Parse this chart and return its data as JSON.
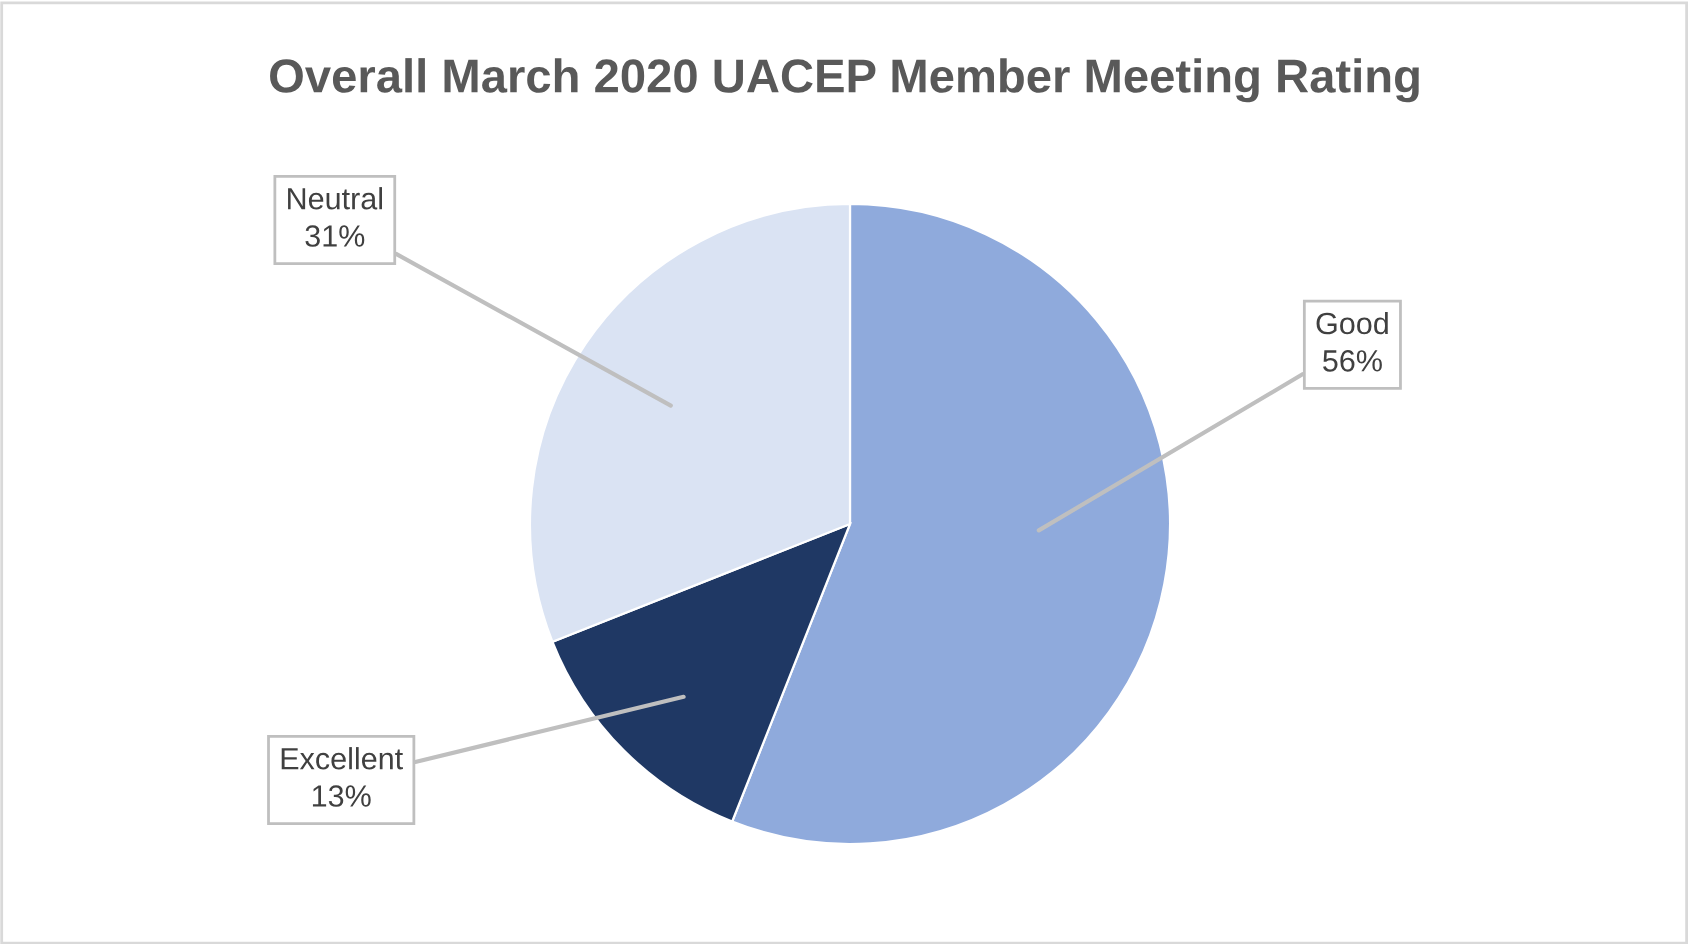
{
  "chart_data": {
    "type": "pie",
    "title": "Overall March 2020 UACEP Member Meeting Rating",
    "categories": [
      "Good",
      "Excellent",
      "Neutral"
    ],
    "values": [
      56,
      13,
      31
    ],
    "value_labels": [
      "56%",
      "13%",
      "31%"
    ],
    "colors": [
      "#8faadc",
      "#1f3864",
      "#dae3f3"
    ],
    "legend": false
  }
}
